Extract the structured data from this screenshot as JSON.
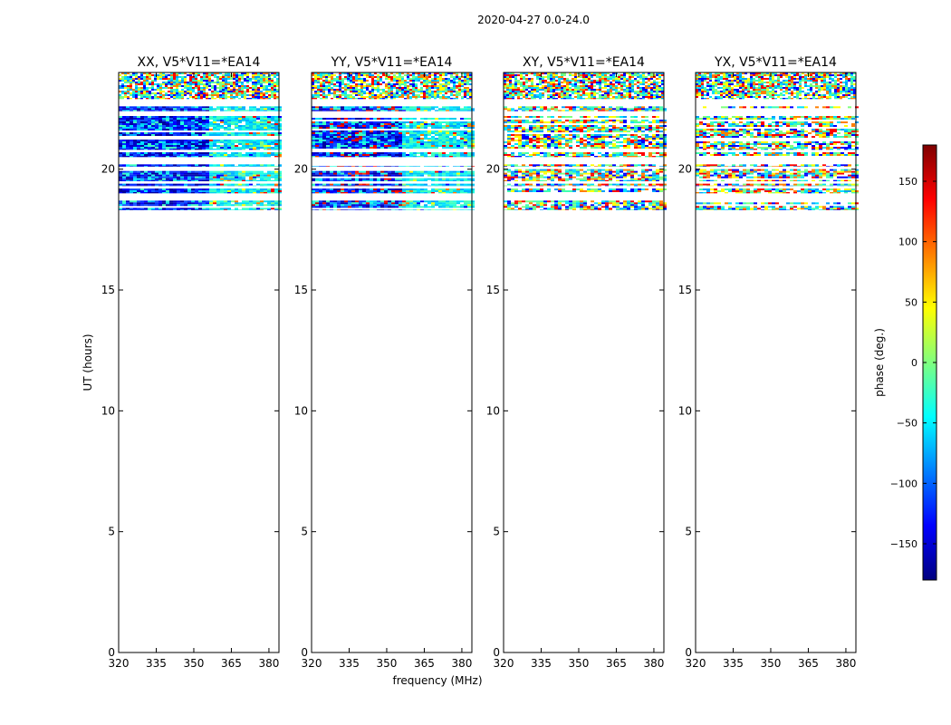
{
  "figure": {
    "suptitle": "2020-04-27 0.0-24.0",
    "xlabel": "frequency (MHz)",
    "ylabel": "UT (hours)"
  },
  "colorbar": {
    "label": "phase (deg.)",
    "range": [
      -180,
      180
    ],
    "ticks": [
      -150,
      -100,
      -50,
      0,
      50,
      100,
      150
    ],
    "tick_labels": [
      "−150",
      "−100",
      "−50",
      "0",
      "50",
      "100",
      "150"
    ],
    "colormap": "jet",
    "colors": [
      "#00007f",
      "#0000ff",
      "#007fff",
      "#00ffff",
      "#7fff7f",
      "#ffff00",
      "#ff7f00",
      "#ff0000",
      "#7f0000"
    ]
  },
  "chart_data": [
    {
      "type": "heatmap",
      "title": "XX, V5*V11=*EA14",
      "xlim": [
        320,
        384
      ],
      "ylim": [
        0,
        24
      ],
      "xticks": [
        320,
        335,
        350,
        365,
        380
      ],
      "yticks": [
        0,
        5,
        10,
        15,
        20
      ],
      "scheme": "par",
      "data_bands_hours": [
        [
          18.3,
          18.7
        ],
        [
          19.0,
          19.2
        ],
        [
          19.3,
          19.4
        ],
        [
          19.5,
          20.0
        ],
        [
          20.1,
          20.2
        ],
        [
          20.5,
          20.7
        ],
        [
          20.8,
          22.2
        ],
        [
          22.4,
          22.6
        ],
        [
          22.9,
          24.0
        ]
      ]
    },
    {
      "type": "heatmap",
      "title": "YY, V5*V11=*EA14",
      "xlim": [
        320,
        384
      ],
      "ylim": [
        0,
        24
      ],
      "xticks": [
        320,
        335,
        350,
        365,
        380
      ],
      "yticks": [
        0,
        5,
        10,
        15,
        20
      ],
      "scheme": "par",
      "data_bands_hours": [
        [
          18.3,
          18.7
        ],
        [
          19.0,
          19.2
        ],
        [
          19.3,
          19.4
        ],
        [
          19.5,
          20.0
        ],
        [
          20.1,
          20.2
        ],
        [
          20.5,
          20.7
        ],
        [
          20.8,
          22.2
        ],
        [
          22.4,
          22.6
        ],
        [
          22.9,
          24.0
        ]
      ]
    },
    {
      "type": "heatmap",
      "title": "XY, V5*V11=*EA14",
      "xlim": [
        320,
        384
      ],
      "ylim": [
        0,
        24
      ],
      "xticks": [
        320,
        335,
        350,
        365,
        380
      ],
      "yticks": [
        0,
        5,
        10,
        15,
        20
      ],
      "scheme": "cross",
      "data_bands_hours": [
        [
          18.3,
          18.7
        ],
        [
          19.0,
          19.2
        ],
        [
          19.3,
          19.4
        ],
        [
          19.5,
          20.0
        ],
        [
          20.1,
          20.2
        ],
        [
          20.5,
          20.7
        ],
        [
          20.8,
          22.2
        ],
        [
          22.4,
          22.6
        ],
        [
          22.9,
          24.0
        ]
      ]
    },
    {
      "type": "heatmap",
      "title": "YX, V5*V11=*EA14",
      "xlim": [
        320,
        384
      ],
      "ylim": [
        0,
        24
      ],
      "xticks": [
        320,
        335,
        350,
        365,
        380
      ],
      "yticks": [
        0,
        5,
        10,
        15,
        20
      ],
      "scheme": "cross",
      "data_bands_hours": [
        [
          18.3,
          18.7
        ],
        [
          19.0,
          19.2
        ],
        [
          19.3,
          19.4
        ],
        [
          19.5,
          20.0
        ],
        [
          20.1,
          20.2
        ],
        [
          20.5,
          20.7
        ],
        [
          20.8,
          22.2
        ],
        [
          22.4,
          22.6
        ],
        [
          22.9,
          24.0
        ]
      ]
    }
  ]
}
